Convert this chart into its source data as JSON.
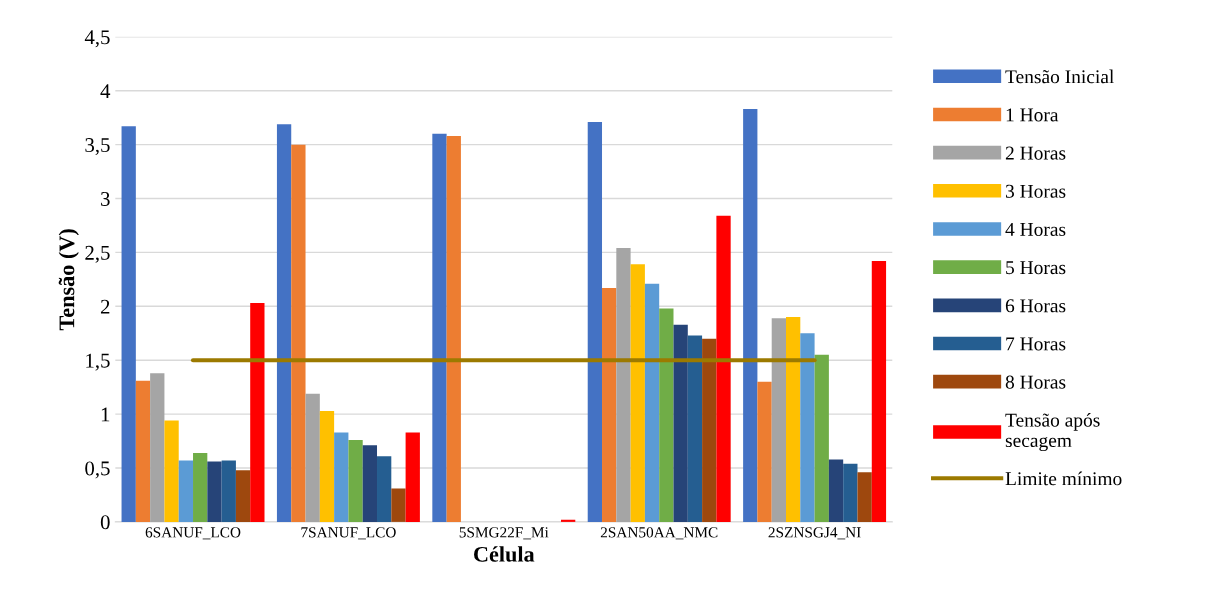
{
  "chart_data": {
    "type": "bar",
    "xlabel": "Célula",
    "ylabel": "Tensão (V)",
    "categories": [
      "6SANUF_LCO",
      "7SANUF_LCO",
      "5SMG22F_Mi",
      "2SAN50AA_NMC",
      "2SZNSGJ4_NI"
    ],
    "ylim": [
      0,
      4.5
    ],
    "yticks": [
      0,
      {
        "value": 0.5,
        "label": "0,5"
      },
      1,
      {
        "value": 1.5,
        "label": "1,5"
      },
      2,
      {
        "value": 2.5,
        "label": "2,5"
      },
      3,
      {
        "value": 3.5,
        "label": "3,5"
      },
      4,
      {
        "value": 4.5,
        "label": "4,5"
      }
    ],
    "grid": "y",
    "legend": "right",
    "series": [
      {
        "name": "Tensão Inicial",
        "color": "#4472c4",
        "values": [
          3.67,
          3.69,
          3.6,
          3.71,
          3.83
        ]
      },
      {
        "name": "1 Hora",
        "color": "#ed7d31",
        "values": [
          1.31,
          3.5,
          3.58,
          2.17,
          1.3
        ]
      },
      {
        "name": "2 Horas",
        "color": "#a5a5a5",
        "values": [
          1.38,
          1.19,
          0,
          2.54,
          1.89
        ]
      },
      {
        "name": "3 Horas",
        "color": "#ffc000",
        "values": [
          0.94,
          1.03,
          0,
          2.39,
          1.9
        ]
      },
      {
        "name": "4 Horas",
        "color": "#5b9bd5",
        "values": [
          0.57,
          0.83,
          0,
          2.21,
          1.75
        ]
      },
      {
        "name": "5 Horas",
        "color": "#70ad47",
        "values": [
          0.64,
          0.76,
          0,
          1.98,
          1.55
        ]
      },
      {
        "name": "6 Horas",
        "color": "#264478",
        "values": [
          0.56,
          0.71,
          0,
          1.83,
          0.58
        ]
      },
      {
        "name": "7 Horas",
        "color": "#255e91",
        "values": [
          0.57,
          0.61,
          0,
          1.73,
          0.54
        ]
      },
      {
        "name": "8 Horas",
        "color": "#9e480e",
        "values": [
          0.48,
          0.31,
          0,
          1.7,
          0.46
        ]
      },
      {
        "name": "Tensão após\nsecagem",
        "color": "#ff0000",
        "values": [
          2.03,
          0.83,
          0.02,
          2.84,
          2.42
        ]
      },
      {
        "name": "Limite mínimo",
        "color": "#9c7a00",
        "type": "line",
        "values": [
          1.5,
          1.5,
          1.5,
          1.5,
          1.5
        ]
      }
    ]
  }
}
